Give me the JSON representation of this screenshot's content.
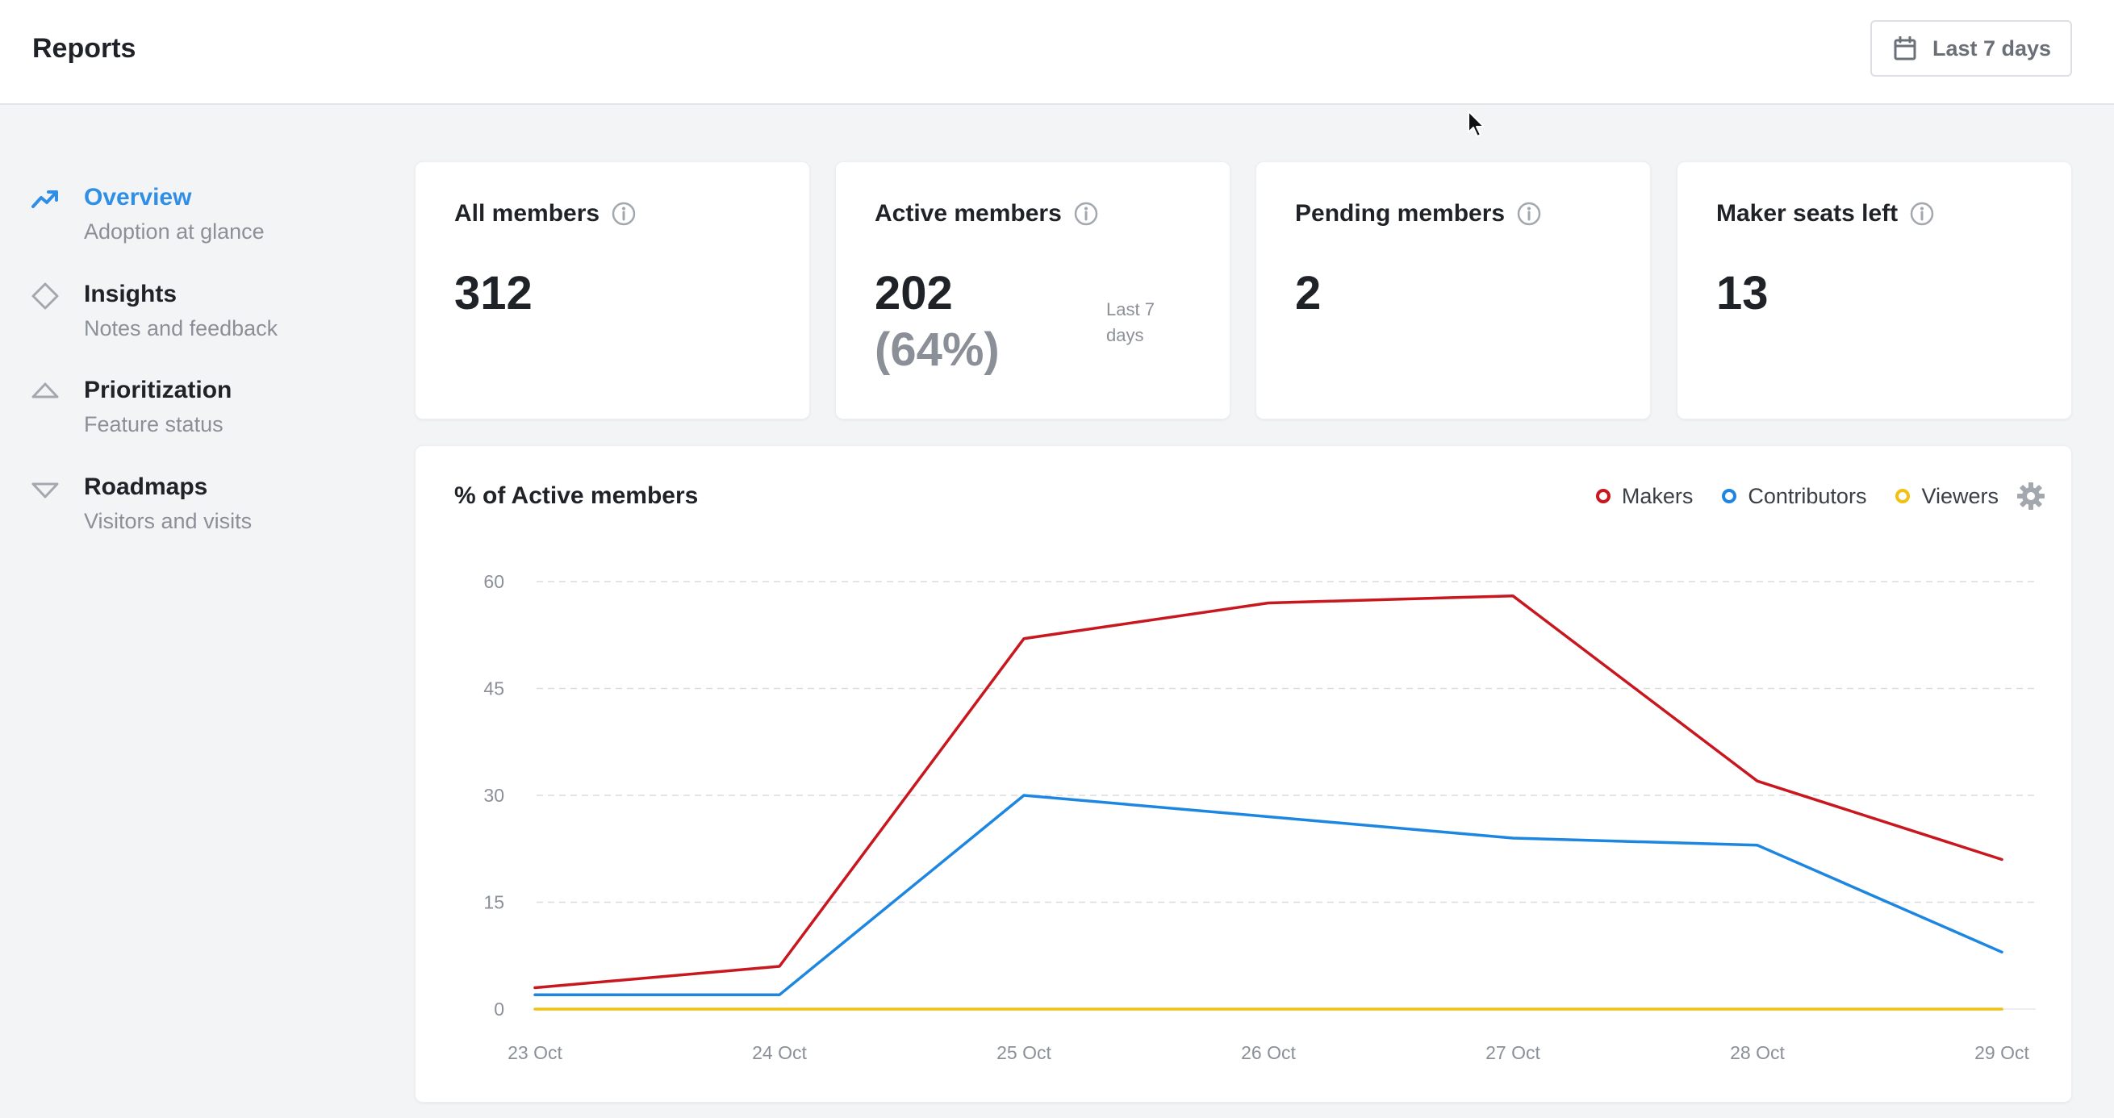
{
  "header": {
    "title": "Reports",
    "date_range": {
      "label": "Last 7 days",
      "icon": "calendar-icon"
    }
  },
  "sidebar": {
    "items": [
      {
        "title": "Overview",
        "subtitle": "Adoption at glance",
        "icon": "trend-up-icon",
        "active": true
      },
      {
        "title": "Insights",
        "subtitle": "Notes and feedback",
        "icon": "diamond-icon",
        "active": false
      },
      {
        "title": "Prioritization",
        "subtitle": "Feature status",
        "icon": "triangle-up-icon",
        "active": false
      },
      {
        "title": "Roadmaps",
        "subtitle": "Visitors and visits",
        "icon": "triangle-down-icon",
        "active": false
      }
    ]
  },
  "stats": [
    {
      "label": "All members",
      "value": "312"
    },
    {
      "label": "Active members",
      "value": "202",
      "percent": "(64%)",
      "period": "Last 7 days"
    },
    {
      "label": "Pending members",
      "value": "2"
    },
    {
      "label": "Maker seats left",
      "value": "13"
    }
  ],
  "colors": {
    "accent": "#2f8ee6",
    "makers": "#c8171e",
    "contributors": "#1d86e0",
    "viewers": "#f2c011"
  },
  "chart_data": {
    "type": "line",
    "title": "% of Active members",
    "x": [
      "23 Oct",
      "24 Oct",
      "25 Oct",
      "26 Oct",
      "27 Oct",
      "28 Oct",
      "29 Oct"
    ],
    "yticks": [
      0,
      15,
      30,
      45,
      60
    ],
    "ylim": [
      0,
      60
    ],
    "grid": true,
    "legend_position": "top-right",
    "series": [
      {
        "name": "Makers",
        "color": "#c8171e",
        "values": [
          3,
          6,
          52,
          57,
          58,
          32,
          21
        ]
      },
      {
        "name": "Contributors",
        "color": "#1d86e0",
        "values": [
          2,
          2,
          30,
          27,
          24,
          23,
          8
        ]
      },
      {
        "name": "Viewers",
        "color": "#f2c011",
        "values": [
          0,
          0,
          0,
          0,
          0,
          0,
          0
        ]
      }
    ]
  }
}
